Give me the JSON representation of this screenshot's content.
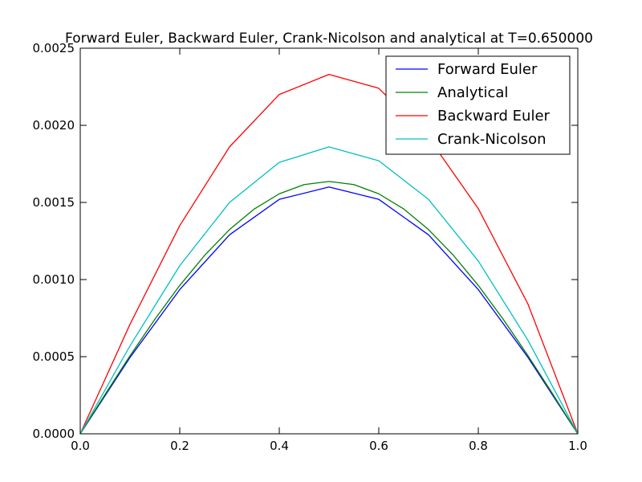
{
  "chart_data": {
    "type": "line",
    "title": "Forward Euler, Backward Euler, Crank-Nicolson and analytical at T=0.650000",
    "xlabel": "",
    "ylabel": "",
    "xlim": [
      0.0,
      1.0
    ],
    "ylim": [
      0.0,
      0.0025
    ],
    "grid": false,
    "legend_position": "top-right",
    "x_ticks": [
      {
        "value": 0.0,
        "label": "0.0"
      },
      {
        "value": 0.2,
        "label": "0.2"
      },
      {
        "value": 0.4,
        "label": "0.4"
      },
      {
        "value": 0.6,
        "label": "0.6"
      },
      {
        "value": 0.8,
        "label": "0.8"
      },
      {
        "value": 1.0,
        "label": "1.0"
      }
    ],
    "y_ticks": [
      {
        "value": 0.0,
        "label": "0.0000"
      },
      {
        "value": 0.0005,
        "label": "0.0005"
      },
      {
        "value": 0.001,
        "label": "0.0010"
      },
      {
        "value": 0.0015,
        "label": "0.0015"
      },
      {
        "value": 0.002,
        "label": "0.0020"
      },
      {
        "value": 0.0025,
        "label": "0.0025"
      }
    ],
    "series": [
      {
        "name": "Forward Euler",
        "color": "#0000ff",
        "x": [
          0.0,
          0.1,
          0.2,
          0.3,
          0.4,
          0.5,
          0.6,
          0.7,
          0.8,
          0.9,
          1.0
        ],
        "y": [
          0.0,
          0.000495,
          0.000935,
          0.00129,
          0.00152,
          0.0016,
          0.00152,
          0.00129,
          0.000935,
          0.000495,
          0.0
        ]
      },
      {
        "name": "Analytical",
        "color": "#008000",
        "x": [
          0.0,
          0.05,
          0.1,
          0.15,
          0.2,
          0.25,
          0.3,
          0.35,
          0.4,
          0.45,
          0.5,
          0.55,
          0.6,
          0.65,
          0.7,
          0.75,
          0.8,
          0.85,
          0.9,
          0.95,
          1.0
        ],
        "y": [
          0.0,
          0.000256,
          0.000506,
          0.000743,
          0.000962,
          0.001157,
          0.001324,
          0.001458,
          0.001556,
          0.001616,
          0.001636,
          0.001616,
          0.001556,
          0.001458,
          0.001324,
          0.001157,
          0.000962,
          0.000743,
          0.000506,
          0.000256,
          0.0
        ]
      },
      {
        "name": "Backward Euler",
        "color": "#ff0000",
        "x": [
          0.0,
          0.1,
          0.2,
          0.3,
          0.4,
          0.5,
          0.6,
          0.7,
          0.8,
          0.9,
          1.0
        ],
        "y": [
          0.0,
          0.00071,
          0.00135,
          0.00186,
          0.0022,
          0.00233,
          0.00224,
          0.00192,
          0.00146,
          0.00084,
          0.0
        ]
      },
      {
        "name": "Crank-Nicolson",
        "color": "#00bfbf",
        "x": [
          0.0,
          0.1,
          0.2,
          0.3,
          0.4,
          0.5,
          0.6,
          0.7,
          0.8,
          0.9,
          1.0
        ],
        "y": [
          0.0,
          0.00057,
          0.00109,
          0.0015,
          0.00176,
          0.00186,
          0.00177,
          0.00152,
          0.00112,
          0.000605,
          0.0
        ]
      }
    ]
  }
}
